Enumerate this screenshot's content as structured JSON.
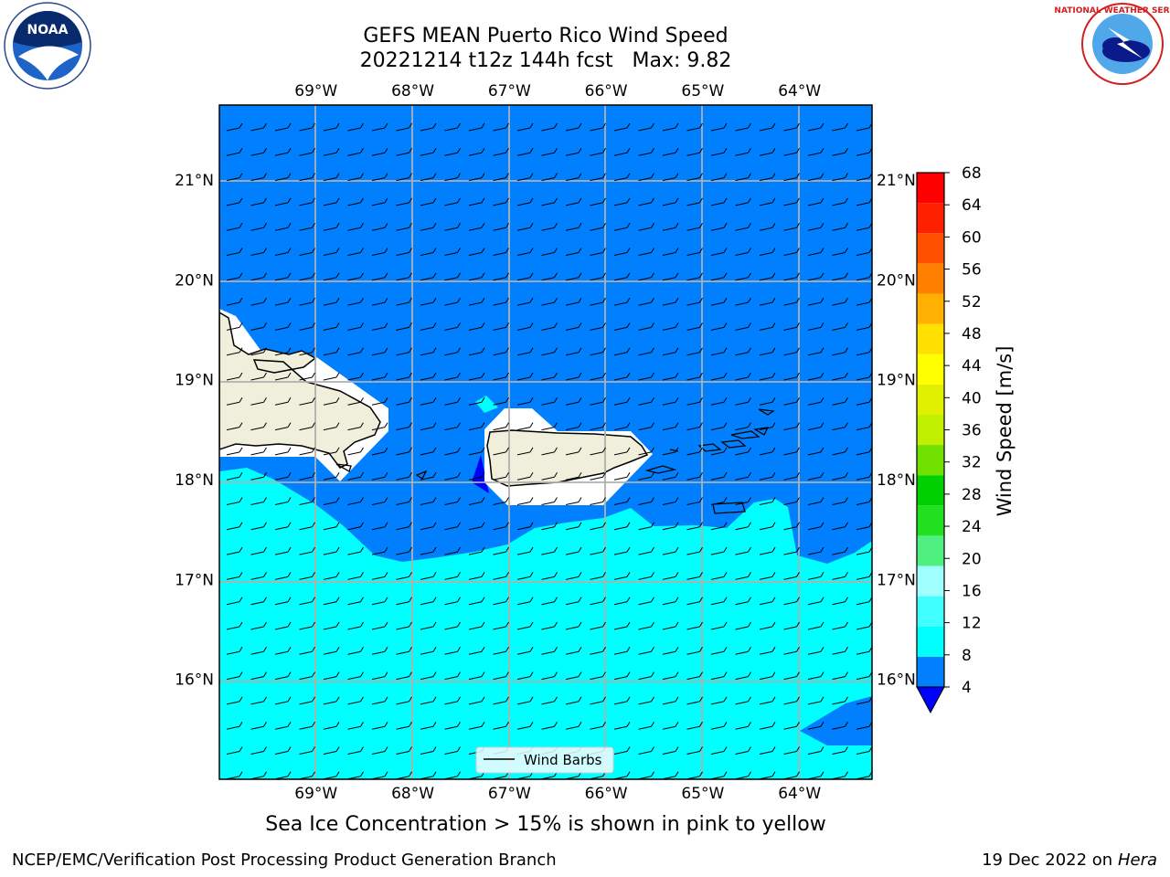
{
  "header": {
    "title_line1": "GEFS MEAN Puerto Rico Wind Speed",
    "title_line2": "20221214 t12z 144h fcst   Max: 9.82"
  },
  "logos": {
    "left": {
      "icon": "noaa-logo-icon",
      "text": "NOAA"
    },
    "right": {
      "icon": "nws-logo-icon",
      "text": "NATIONAL WEATHER SERVICE"
    }
  },
  "map": {
    "lon_labels": [
      "69°W",
      "68°W",
      "67°W",
      "66°W",
      "65°W",
      "64°W"
    ],
    "lat_labels": [
      "21°N",
      "20°N",
      "19°N",
      "18°N",
      "17°N",
      "16°N"
    ],
    "lon_values": [
      -69,
      -68,
      -67,
      -66,
      -65,
      -64
    ],
    "lat_values": [
      21,
      20,
      19,
      18,
      17,
      16
    ],
    "lon_range": [
      -70,
      -63.25
    ],
    "lat_range": [
      15.0,
      21.75
    ],
    "grid": true,
    "land_color": "#efefdc",
    "legend": {
      "label": "Wind Barbs",
      "placement": "bottom-center"
    }
  },
  "colorbar": {
    "label": "Wind Speed [m/s]",
    "ticks": [
      "68",
      "64",
      "60",
      "56",
      "52",
      "48",
      "44",
      "40",
      "36",
      "32",
      "28",
      "24",
      "20",
      "16",
      "12",
      "8",
      "4"
    ],
    "tick_values": [
      68,
      64,
      60,
      56,
      52,
      48,
      44,
      40,
      36,
      32,
      28,
      24,
      20,
      16,
      12,
      8,
      4
    ],
    "colors_bottom_to_top": [
      "#0080ff",
      "#00ffff",
      "#40ffff",
      "#a0ffff",
      "#50f080",
      "#20e020",
      "#00d000",
      "#70e000",
      "#c0f000",
      "#e0f000",
      "#ffff00",
      "#ffe000",
      "#ffb000",
      "#ff8000",
      "#ff5000",
      "#ff2000",
      "#ff0000"
    ],
    "under_color": "#0000ff"
  },
  "subtitle": "Sea Ice Concentration > 15% is shown in pink to yellow",
  "footer": {
    "left": "NCEP/EMC/Verification Post Processing Product Generation Branch",
    "right_date": "19 Dec 2022 on",
    "right_host": "Hera"
  }
}
